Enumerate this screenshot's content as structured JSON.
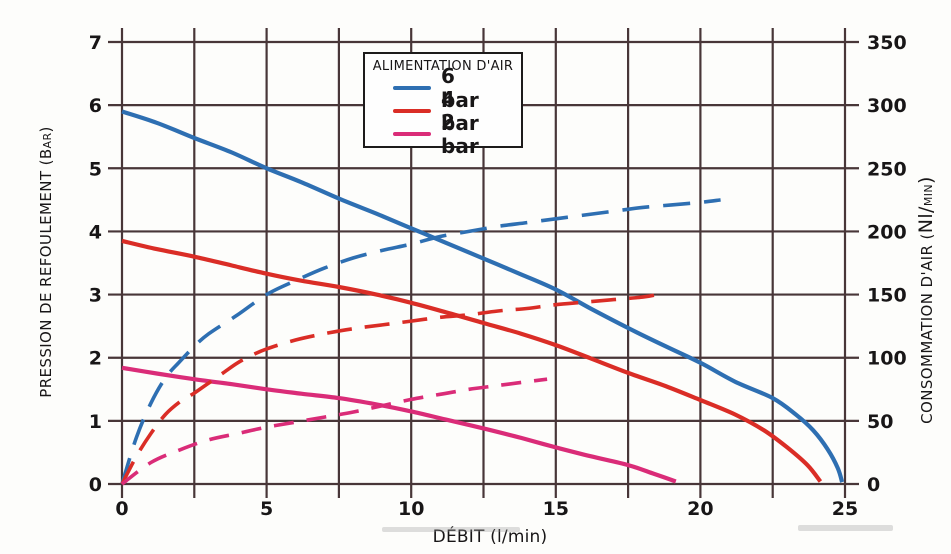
{
  "chart_data": {
    "type": "line",
    "title": "",
    "xlabel": "DÉBIT (l/min)",
    "ylabel_left": "PRESSION DE REFOULEMENT (BAR)",
    "ylabel_left_parts": {
      "main": "PRESSION DE REFOULEMENT (B",
      "small": "AR",
      "close": ")"
    },
    "ylabel_right": "CONSOMMATION D'AIR (Nl/MIN)",
    "ylabel_right_parts": {
      "pre": "CONSOMMATION D'AIR (",
      "big": "Nl/",
      "small": "MIN",
      "close": ")"
    },
    "xlim": [
      0,
      25
    ],
    "x_tick_labels": [
      0,
      5,
      10,
      15,
      20,
      25
    ],
    "x_grid_step": 2.5,
    "ylim_left": [
      0,
      7
    ],
    "y_ticks_left": [
      0,
      1,
      2,
      3,
      4,
      5,
      6,
      7
    ],
    "ylim_right": [
      0,
      350
    ],
    "y_ticks_right": [
      0,
      50,
      100,
      150,
      200,
      250,
      300,
      350
    ],
    "grid": true,
    "grid_color": "#483638",
    "text_color": "#181617",
    "legend": {
      "title": "ALIMENTATION D'AIR",
      "position": "top, left of center",
      "entries": [
        {
          "label": "6 bar",
          "color": "#2e6fb2"
        },
        {
          "label": "4 bar",
          "color": "#da2d26"
        },
        {
          "label": "2 bar",
          "color": "#da2c78"
        }
      ]
    },
    "series": [
      {
        "id": "pressure-6bar",
        "name": "6 bar — pression de refoulement (bar)",
        "axis": "left",
        "style": "solid",
        "color": "#2e6fb2",
        "points": [
          [
            0,
            5.9
          ],
          [
            1.2,
            5.72
          ],
          [
            2.5,
            5.48
          ],
          [
            3.8,
            5.25
          ],
          [
            5,
            5.0
          ],
          [
            6.2,
            4.78
          ],
          [
            7.5,
            4.52
          ],
          [
            8.8,
            4.28
          ],
          [
            10,
            4.05
          ],
          [
            11.2,
            3.82
          ],
          [
            12.5,
            3.57
          ],
          [
            13.8,
            3.32
          ],
          [
            15,
            3.08
          ],
          [
            16.2,
            2.78
          ],
          [
            17.5,
            2.47
          ],
          [
            18.8,
            2.18
          ],
          [
            20,
            1.92
          ],
          [
            21.2,
            1.62
          ],
          [
            22.5,
            1.36
          ],
          [
            23.3,
            1.1
          ],
          [
            23.9,
            0.85
          ],
          [
            24.4,
            0.55
          ],
          [
            24.75,
            0.25
          ],
          [
            24.9,
            0.03
          ]
        ]
      },
      {
        "id": "pressure-4bar",
        "name": "4 bar — pression de refoulement (bar)",
        "axis": "left",
        "style": "solid",
        "color": "#da2d26",
        "points": [
          [
            0,
            3.85
          ],
          [
            1.2,
            3.72
          ],
          [
            2.5,
            3.6
          ],
          [
            3.8,
            3.46
          ],
          [
            5,
            3.33
          ],
          [
            6.2,
            3.22
          ],
          [
            7.5,
            3.12
          ],
          [
            8.8,
            3.0
          ],
          [
            10,
            2.87
          ],
          [
            11.2,
            2.72
          ],
          [
            12.5,
            2.55
          ],
          [
            13.8,
            2.38
          ],
          [
            15,
            2.2
          ],
          [
            16.2,
            1.99
          ],
          [
            17.5,
            1.76
          ],
          [
            18.8,
            1.55
          ],
          [
            20,
            1.33
          ],
          [
            21.2,
            1.1
          ],
          [
            22.2,
            0.85
          ],
          [
            23,
            0.58
          ],
          [
            23.7,
            0.3
          ],
          [
            24.15,
            0.04
          ]
        ]
      },
      {
        "id": "pressure-2bar",
        "name": "2 bar — pression de refoulement (bar)",
        "axis": "left",
        "style": "solid",
        "color": "#da2c78",
        "points": [
          [
            0,
            1.84
          ],
          [
            1.2,
            1.75
          ],
          [
            2.5,
            1.66
          ],
          [
            3.8,
            1.58
          ],
          [
            5,
            1.5
          ],
          [
            6.2,
            1.43
          ],
          [
            7.5,
            1.36
          ],
          [
            8.8,
            1.26
          ],
          [
            10,
            1.15
          ],
          [
            11.2,
            1.02
          ],
          [
            12.5,
            0.88
          ],
          [
            13.8,
            0.73
          ],
          [
            15,
            0.58
          ],
          [
            16.2,
            0.44
          ],
          [
            17.5,
            0.3
          ],
          [
            18.4,
            0.16
          ],
          [
            19.15,
            0.04
          ]
        ]
      },
      {
        "id": "airconsumption-6bar",
        "name": "6 bar — consommation d'air (Nl/min)",
        "axis": "right",
        "style": "dashed",
        "dash": [
          27,
          14
        ],
        "color": "#2e6fb2",
        "points": [
          [
            0,
            0
          ],
          [
            0.5,
            37
          ],
          [
            1,
            64
          ],
          [
            1.5,
            84
          ],
          [
            2,
            97
          ],
          [
            2.5,
            109
          ],
          [
            3,
            119
          ],
          [
            4,
            134
          ],
          [
            5,
            150
          ],
          [
            6,
            161
          ],
          [
            7,
            171
          ],
          [
            8,
            179
          ],
          [
            9,
            185
          ],
          [
            10,
            190
          ],
          [
            11,
            196
          ],
          [
            12,
            200
          ],
          [
            13,
            204
          ],
          [
            14,
            207
          ],
          [
            15,
            210
          ],
          [
            16,
            213
          ],
          [
            17,
            216
          ],
          [
            18,
            219
          ],
          [
            19,
            221
          ],
          [
            20,
            223
          ],
          [
            20.7,
            225
          ]
        ]
      },
      {
        "id": "airconsumption-4bar",
        "name": "4 bar — consommation d'air (Nl/min)",
        "axis": "right",
        "style": "dashed",
        "dash": [
          25,
          13
        ],
        "color": "#da2d26",
        "points": [
          [
            0,
            0
          ],
          [
            0.5,
            22
          ],
          [
            1,
            40
          ],
          [
            1.5,
            55
          ],
          [
            2,
            65
          ],
          [
            2.5,
            72
          ],
          [
            3,
            80
          ],
          [
            3.5,
            88
          ],
          [
            4,
            96
          ],
          [
            4.5,
            102
          ],
          [
            5,
            107
          ],
          [
            6,
            114
          ],
          [
            7,
            119
          ],
          [
            8,
            123
          ],
          [
            9,
            126
          ],
          [
            10,
            129
          ],
          [
            11,
            132
          ],
          [
            12,
            134
          ],
          [
            13,
            137
          ],
          [
            14,
            139
          ],
          [
            15,
            142
          ],
          [
            16,
            144
          ],
          [
            17,
            146
          ],
          [
            18,
            148
          ],
          [
            18.5,
            150
          ]
        ]
      },
      {
        "id": "airconsumption-2bar",
        "name": "2 bar — consommation d'air (Nl/min)",
        "axis": "right",
        "style": "dashed",
        "dash": [
          20,
          13
        ],
        "color": "#da2c78",
        "points": [
          [
            0,
            0
          ],
          [
            1,
            17
          ],
          [
            2,
            27
          ],
          [
            3,
            35
          ],
          [
            4,
            40
          ],
          [
            5,
            45
          ],
          [
            6,
            49
          ],
          [
            7,
            53
          ],
          [
            8,
            57
          ],
          [
            9,
            62
          ],
          [
            10,
            67
          ],
          [
            11,
            71
          ],
          [
            12,
            75
          ],
          [
            13,
            78
          ],
          [
            14,
            81
          ],
          [
            14.7,
            83
          ]
        ]
      }
    ]
  }
}
